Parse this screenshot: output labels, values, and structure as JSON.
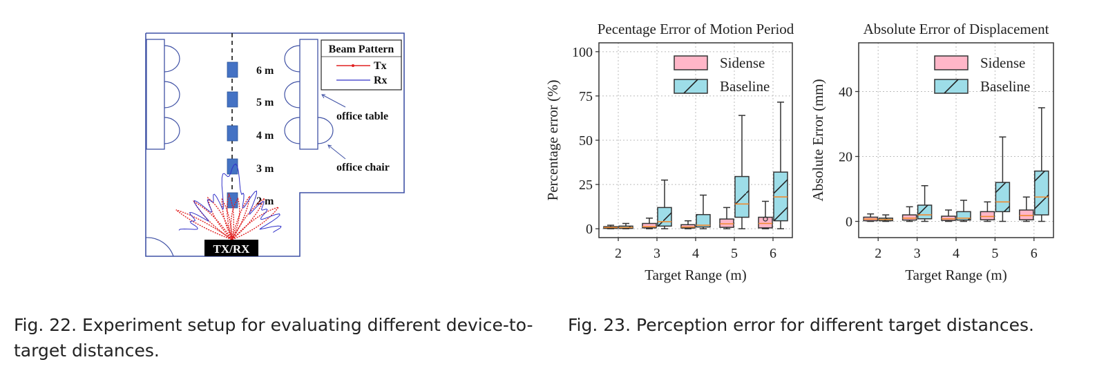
{
  "figure22": {
    "diagram": {
      "legend_title": "Beam Pattern",
      "legend_tx": "Tx",
      "legend_rx": "Rx",
      "distances": [
        "6 m",
        "5 m",
        "4 m",
        "3 m",
        "2 m"
      ],
      "label_table": "office table",
      "label_chair": "office chair",
      "label_txrx": "TX/RX",
      "colors": {
        "wall": "#3f51a5",
        "target": "#4472c4",
        "tx": "#e02020",
        "rx": "#3030c8"
      }
    },
    "caption_label": "Fig. 22.",
    "caption_text": "Experiment setup for evaluating different device-to-target distances."
  },
  "figure23": {
    "caption_label": "Fig. 23.",
    "caption_text": "Perception error for different target distances.",
    "legend": [
      "Sidense",
      "Baseline"
    ],
    "colors": {
      "sidense": "#ffb6c8",
      "baseline": "#9ddde8",
      "median": "#f08a30"
    }
  },
  "chart_data": [
    {
      "type": "box",
      "title": "Pecentage Error of Motion Period",
      "xlabel": "Target Range (m)",
      "ylabel": "Percentage error (%)",
      "categories": [
        "2",
        "3",
        "4",
        "5",
        "6"
      ],
      "yticks": [
        "0",
        "25",
        "50",
        "75",
        "100"
      ],
      "ylim": [
        -5,
        105
      ],
      "grid": true,
      "legend_position": "top-right",
      "series": [
        {
          "name": "Sidense",
          "boxes": [
            {
              "min": 0,
              "q1": 0.2,
              "median": 0.7,
              "q3": 1.2,
              "max": 2
            },
            {
              "min": 0,
              "q1": 0.5,
              "median": 1.2,
              "q3": 3,
              "max": 6
            },
            {
              "min": 0,
              "q1": 0.4,
              "median": 1,
              "q3": 2.3,
              "max": 4.5
            },
            {
              "min": 0,
              "q1": 0.8,
              "median": 2.8,
              "q3": 5.5,
              "max": 12
            },
            {
              "min": 0,
              "q1": 0.5,
              "median": 3,
              "q3": 6.5,
              "max": 15.5
            }
          ]
        },
        {
          "name": "Baseline",
          "boxes": [
            {
              "min": 0,
              "q1": 0.2,
              "median": 0.7,
              "q3": 1.5,
              "max": 3
            },
            {
              "min": 0,
              "q1": 1.5,
              "median": 4,
              "q3": 12,
              "max": 27.5
            },
            {
              "min": 0,
              "q1": 1,
              "median": 2,
              "q3": 8,
              "max": 19
            },
            {
              "min": 0,
              "q1": 6.5,
              "median": 14,
              "q3": 29.5,
              "max": 64
            },
            {
              "min": 0,
              "q1": 4.5,
              "median": 18,
              "q3": 32,
              "max": 71.5
            }
          ]
        }
      ],
      "outliers": [
        {
          "series": "Sidense",
          "category": "6",
          "value": 5.5
        }
      ]
    },
    {
      "type": "box",
      "title": "Absolute Error of Displacement",
      "xlabel": "Target Range (m)",
      "ylabel": "Absolute Error (mm)",
      "categories": [
        "2",
        "3",
        "4",
        "5",
        "6"
      ],
      "yticks": [
        "0",
        "20",
        "40"
      ],
      "ylim": [
        -5,
        55
      ],
      "grid": true,
      "legend_position": "top-right",
      "series": [
        {
          "name": "Sidense",
          "boxes": [
            {
              "min": 0,
              "q1": 0.2,
              "median": 0.7,
              "q3": 1.3,
              "max": 2.3
            },
            {
              "min": 0,
              "q1": 0.4,
              "median": 1,
              "q3": 2,
              "max": 4.5
            },
            {
              "min": 0,
              "q1": 0.3,
              "median": 0.8,
              "q3": 1.6,
              "max": 3.5
            },
            {
              "min": 0,
              "q1": 0.5,
              "median": 1.5,
              "q3": 3,
              "max": 6
            },
            {
              "min": 0,
              "q1": 0.5,
              "median": 1.8,
              "q3": 3.5,
              "max": 7.5
            }
          ]
        },
        {
          "name": "Baseline",
          "boxes": [
            {
              "min": 0,
              "q1": 0.2,
              "median": 0.6,
              "q3": 1,
              "max": 2
            },
            {
              "min": 0,
              "q1": 0.8,
              "median": 2,
              "q3": 5,
              "max": 11
            },
            {
              "min": 0,
              "q1": 0.4,
              "median": 1,
              "q3": 3,
              "max": 6.5
            },
            {
              "min": 0,
              "q1": 3,
              "median": 6,
              "q3": 12,
              "max": 26
            },
            {
              "min": 0,
              "q1": 2,
              "median": 7.5,
              "q3": 15.5,
              "max": 35
            }
          ]
        }
      ]
    }
  ]
}
